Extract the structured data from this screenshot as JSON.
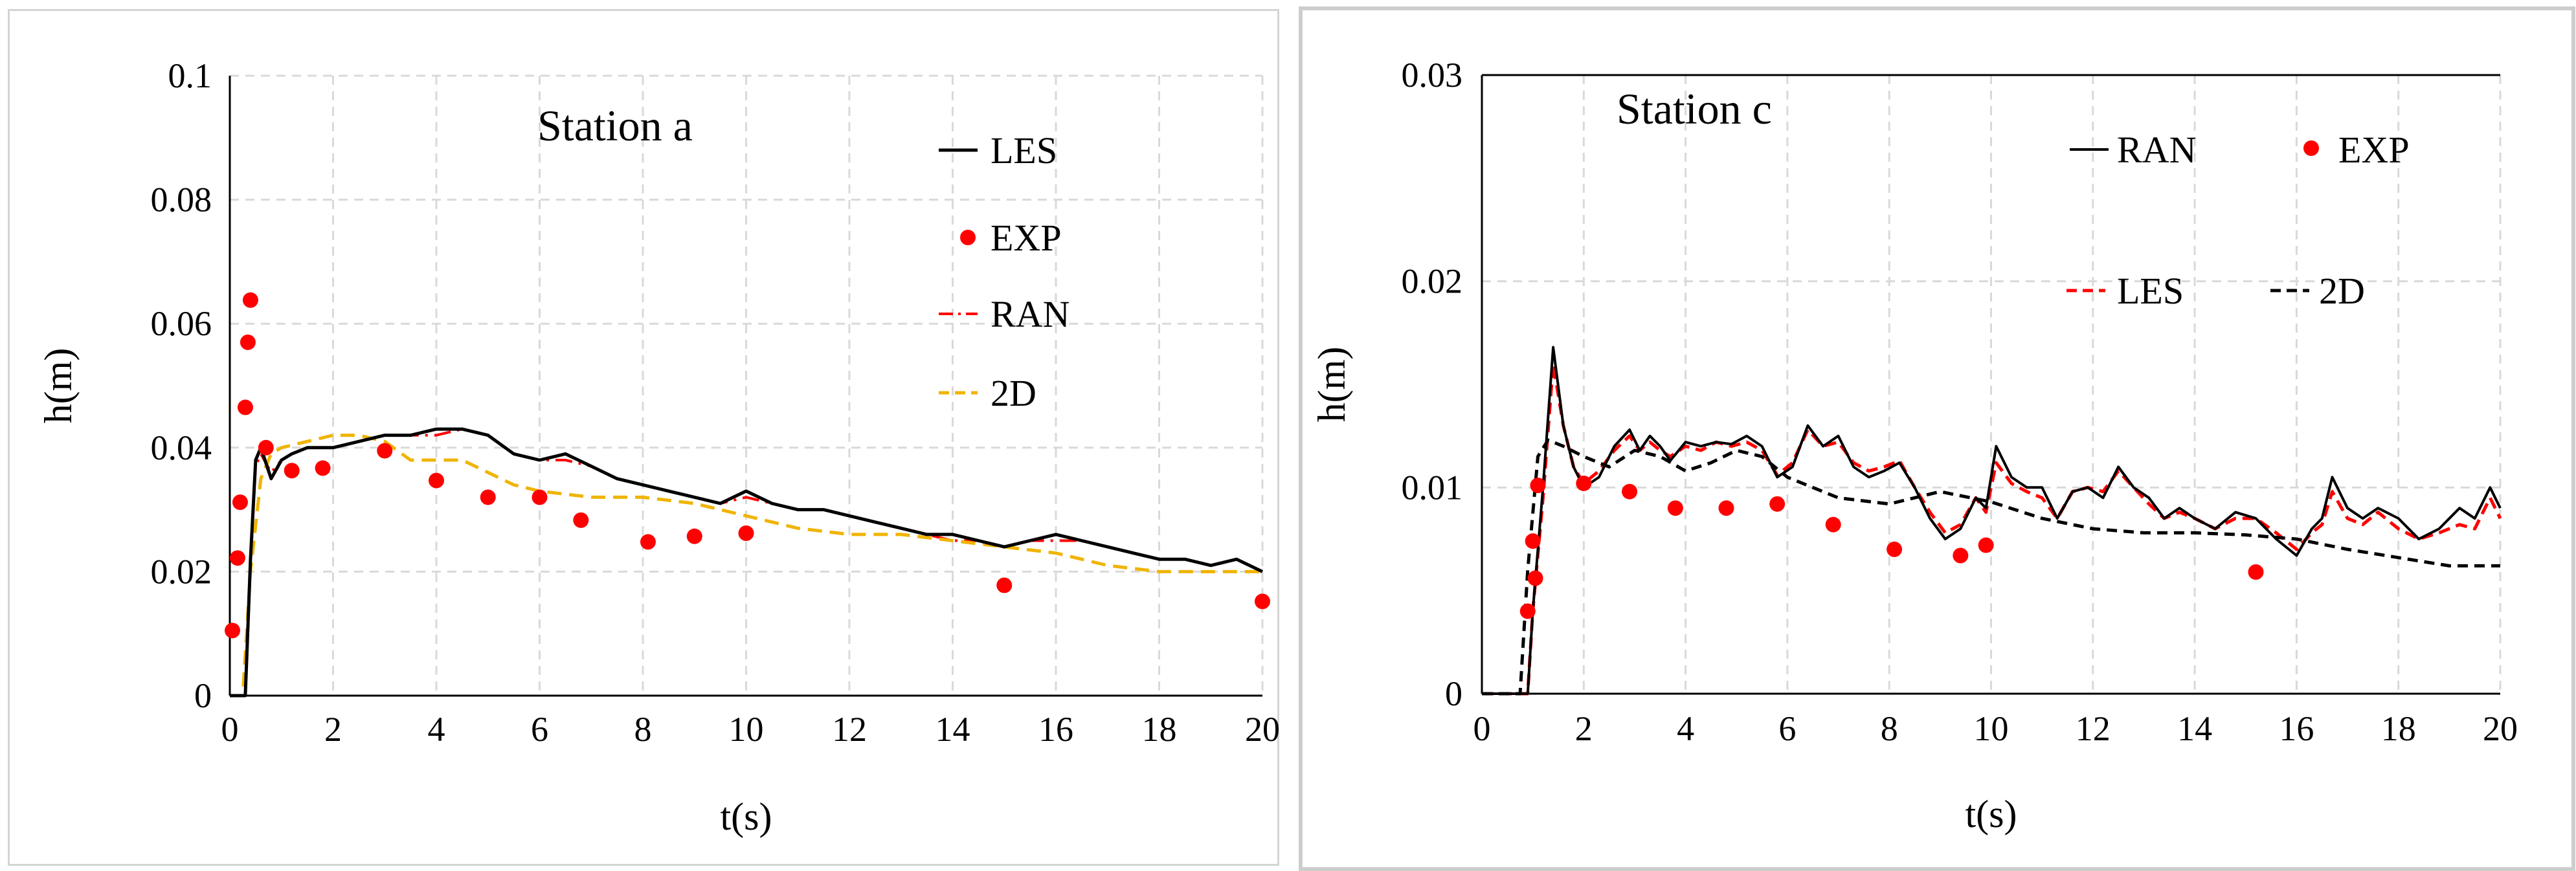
{
  "colors": {
    "les": "#000000",
    "exp": "#ff0000",
    "ran": "#ff0000",
    "twoD": "#f0b400",
    "twoDc": "#000000",
    "grid": "#d9d9d9"
  },
  "chart_data": [
    {
      "type": "line",
      "title": "Station a",
      "xlabel": "t(s)",
      "ylabel": "h(m)",
      "xlim": [
        0,
        20
      ],
      "ylim": [
        0,
        0.1
      ],
      "xticks": [
        "0",
        "2",
        "4",
        "6",
        "8",
        "10",
        "12",
        "14",
        "16",
        "18",
        "20"
      ],
      "yticks": [
        "0",
        "0.02",
        "0.04",
        "0.06",
        "0.08",
        "0.1"
      ],
      "legend": [
        "LES",
        "EXP",
        "RAN",
        "2D"
      ],
      "series": [
        {
          "name": "LES",
          "style": "solid",
          "x": [
            0,
            0.3,
            0.4,
            0.5,
            0.6,
            0.8,
            1.0,
            1.2,
            1.5,
            2.0,
            2.5,
            3.0,
            3.5,
            4.0,
            4.5,
            5.0,
            5.5,
            6.0,
            6.5,
            7.0,
            7.5,
            8.0,
            8.5,
            9.0,
            9.5,
            10.0,
            10.5,
            11.0,
            11.5,
            12.0,
            12.5,
            13.0,
            13.5,
            14.0,
            14.5,
            15.0,
            15.5,
            16.0,
            16.5,
            17.0,
            17.5,
            18.0,
            18.5,
            19.0,
            19.5,
            20.0
          ],
          "y": [
            0,
            0,
            0.022,
            0.038,
            0.04,
            0.035,
            0.038,
            0.039,
            0.04,
            0.04,
            0.041,
            0.042,
            0.042,
            0.043,
            0.043,
            0.042,
            0.039,
            0.038,
            0.039,
            0.037,
            0.035,
            0.034,
            0.033,
            0.032,
            0.031,
            0.033,
            0.031,
            0.03,
            0.03,
            0.029,
            0.028,
            0.027,
            0.026,
            0.026,
            0.025,
            0.024,
            0.025,
            0.026,
            0.025,
            0.024,
            0.023,
            0.022,
            0.022,
            0.021,
            0.022,
            0.02
          ]
        },
        {
          "name": "RAN",
          "style": "dashdot",
          "x": [
            0,
            0.3,
            0.4,
            0.5,
            0.6,
            0.8,
            1.0,
            1.2,
            1.5,
            2.0,
            2.5,
            3.0,
            3.5,
            4.0,
            4.5,
            5.0,
            5.5,
            6.0,
            6.5,
            7.0,
            7.5,
            8.0,
            8.5,
            9.0,
            9.5,
            10.0,
            10.5,
            11.0,
            11.5,
            12.0,
            12.5,
            13.0,
            13.5,
            14.0,
            14.5,
            15.0,
            15.5,
            16.0,
            16.5,
            17.0,
            17.5,
            18.0,
            18.5,
            19.0,
            19.5,
            20.0
          ],
          "y": [
            0,
            0,
            0.021,
            0.037,
            0.039,
            0.036,
            0.038,
            0.039,
            0.04,
            0.04,
            0.041,
            0.042,
            0.042,
            0.042,
            0.043,
            0.042,
            0.039,
            0.038,
            0.038,
            0.037,
            0.035,
            0.034,
            0.033,
            0.032,
            0.031,
            0.032,
            0.031,
            0.03,
            0.03,
            0.029,
            0.028,
            0.027,
            0.026,
            0.025,
            0.025,
            0.024,
            0.025,
            0.025,
            0.025,
            0.024,
            0.023,
            0.022,
            0.022,
            0.021,
            0.022,
            0.02
          ]
        },
        {
          "name": "2D",
          "style": "dash",
          "x": [
            0,
            0.25,
            0.4,
            0.6,
            0.8,
            1.0,
            1.5,
            2.0,
            2.5,
            3.0,
            3.5,
            4.0,
            4.5,
            5.0,
            5.5,
            6.0,
            7.0,
            8.0,
            9.0,
            10.0,
            11.0,
            12.0,
            13.0,
            14.0,
            15.0,
            16.0,
            17.0,
            18.0,
            19.0,
            20.0
          ],
          "y": [
            0,
            0,
            0.02,
            0.035,
            0.039,
            0.04,
            0.041,
            0.042,
            0.042,
            0.041,
            0.038,
            0.038,
            0.038,
            0.036,
            0.034,
            0.033,
            0.032,
            0.032,
            0.031,
            0.029,
            0.027,
            0.026,
            0.026,
            0.025,
            0.024,
            0.023,
            0.021,
            0.02,
            0.02,
            0.02
          ]
        },
        {
          "name": "EXP",
          "style": "marker",
          "x": [
            0.05,
            0.15,
            0.2,
            0.3,
            0.35,
            0.4,
            0.7,
            1.2,
            1.8,
            3.0,
            4.0,
            5.0,
            6.0,
            6.8,
            8.1,
            9.0,
            10.0,
            15.0,
            20.0
          ],
          "y": [
            0.0105,
            0.0222,
            0.0312,
            0.0465,
            0.057,
            0.0638,
            0.04,
            0.0363,
            0.0367,
            0.0395,
            0.0347,
            0.032,
            0.032,
            0.0283,
            0.0248,
            0.0257,
            0.0262,
            0.0178,
            0.0152
          ]
        }
      ]
    },
    {
      "type": "line",
      "title": "Station c",
      "xlabel": "t(s)",
      "ylabel": "h(m)",
      "xlim": [
        0,
        20
      ],
      "ylim": [
        0,
        0.03
      ],
      "xticks": [
        "0",
        "2",
        "4",
        "6",
        "8",
        "10",
        "12",
        "14",
        "16",
        "18",
        "20"
      ],
      "yticks": [
        "0",
        "0.01",
        "0.02",
        "0.03"
      ],
      "legend": [
        "RAN",
        "EXP",
        "LES",
        "2D"
      ],
      "series": [
        {
          "name": "RAN",
          "style": "solid",
          "x": [
            0,
            0.9,
            1.0,
            1.2,
            1.4,
            1.6,
            1.8,
            2.0,
            2.3,
            2.6,
            2.9,
            3.1,
            3.3,
            3.5,
            3.7,
            4.0,
            4.3,
            4.6,
            4.9,
            5.2,
            5.5,
            5.8,
            6.1,
            6.4,
            6.7,
            7.0,
            7.3,
            7.6,
            7.9,
            8.2,
            8.5,
            8.8,
            9.1,
            9.4,
            9.7,
            9.9,
            10.1,
            10.4,
            10.7,
            11.0,
            11.3,
            11.6,
            11.9,
            12.2,
            12.5,
            12.8,
            13.1,
            13.4,
            13.7,
            14.0,
            14.4,
            14.8,
            15.2,
            15.6,
            16.0,
            16.3,
            16.5,
            16.7,
            17.0,
            17.3,
            17.6,
            18.0,
            18.4,
            18.8,
            19.2,
            19.5,
            19.8,
            20.0
          ],
          "y": [
            0,
            0,
            0.004,
            0.01,
            0.0168,
            0.013,
            0.011,
            0.01,
            0.0105,
            0.012,
            0.0128,
            0.0118,
            0.0125,
            0.012,
            0.0113,
            0.0122,
            0.012,
            0.0122,
            0.0121,
            0.0125,
            0.012,
            0.0105,
            0.011,
            0.013,
            0.012,
            0.0125,
            0.011,
            0.0105,
            0.0108,
            0.0112,
            0.01,
            0.0085,
            0.0075,
            0.008,
            0.0095,
            0.009,
            0.012,
            0.0105,
            0.01,
            0.01,
            0.0085,
            0.0098,
            0.01,
            0.0095,
            0.011,
            0.01,
            0.0095,
            0.0085,
            0.009,
            0.0085,
            0.008,
            0.0088,
            0.0085,
            0.0075,
            0.0067,
            0.008,
            0.0085,
            0.0105,
            0.009,
            0.0085,
            0.009,
            0.0085,
            0.0075,
            0.008,
            0.009,
            0.0085,
            0.01,
            0.009
          ]
        },
        {
          "name": "LES",
          "style": "dash",
          "x": [
            0,
            0.9,
            1.0,
            1.2,
            1.4,
            1.6,
            1.8,
            2.0,
            2.3,
            2.6,
            2.9,
            3.1,
            3.3,
            3.5,
            3.7,
            4.0,
            4.3,
            4.6,
            4.9,
            5.2,
            5.5,
            5.8,
            6.1,
            6.4,
            6.7,
            7.0,
            7.3,
            7.6,
            7.9,
            8.2,
            8.5,
            8.8,
            9.1,
            9.4,
            9.7,
            9.9,
            10.1,
            10.4,
            10.7,
            11.0,
            11.3,
            11.6,
            11.9,
            12.2,
            12.5,
            12.8,
            13.1,
            13.4,
            13.7,
            14.0,
            14.4,
            14.8,
            15.2,
            15.6,
            16.0,
            16.3,
            16.5,
            16.7,
            17.0,
            17.3,
            17.6,
            18.0,
            18.4,
            18.8,
            19.2,
            19.5,
            19.8,
            20.0
          ],
          "y": [
            0,
            0,
            0.004,
            0.0095,
            0.016,
            0.013,
            0.011,
            0.0102,
            0.0108,
            0.0118,
            0.0125,
            0.0118,
            0.0122,
            0.0118,
            0.0115,
            0.012,
            0.0118,
            0.0122,
            0.012,
            0.0122,
            0.0118,
            0.0106,
            0.0112,
            0.0128,
            0.012,
            0.0122,
            0.0112,
            0.0108,
            0.011,
            0.0113,
            0.01,
            0.0088,
            0.0078,
            0.0082,
            0.0095,
            0.0088,
            0.0112,
            0.0102,
            0.0098,
            0.0095,
            0.0085,
            0.0098,
            0.01,
            0.0098,
            0.0108,
            0.01,
            0.0092,
            0.0085,
            0.0088,
            0.0085,
            0.008,
            0.0085,
            0.0085,
            0.0078,
            0.007,
            0.0078,
            0.0082,
            0.0098,
            0.0085,
            0.0082,
            0.0088,
            0.008,
            0.0075,
            0.0078,
            0.0082,
            0.008,
            0.0095,
            0.0085
          ]
        },
        {
          "name": "2D",
          "style": "dash",
          "x": [
            0,
            0.75,
            0.9,
            1.1,
            1.3,
            1.6,
            2.0,
            2.5,
            3.0,
            3.5,
            4.0,
            4.5,
            5.0,
            5.5,
            6.0,
            7.0,
            8.0,
            9.0,
            10.0,
            11.0,
            12.0,
            13.0,
            14.0,
            15.0,
            16.0,
            17.0,
            18.0,
            19.0,
            20.0
          ],
          "y": [
            0,
            0,
            0.006,
            0.0115,
            0.0123,
            0.012,
            0.0115,
            0.011,
            0.0118,
            0.0115,
            0.0108,
            0.0112,
            0.0118,
            0.0115,
            0.0105,
            0.0095,
            0.0092,
            0.0098,
            0.0093,
            0.0085,
            0.008,
            0.0078,
            0.0078,
            0.0077,
            0.0075,
            0.007,
            0.0066,
            0.0062,
            0.0062
          ]
        },
        {
          "name": "EXP",
          "style": "marker",
          "x": [
            0.9,
            1.0,
            1.05,
            1.1,
            2.0,
            2.9,
            3.8,
            4.8,
            5.8,
            6.9,
            8.1,
            9.4,
            9.9,
            15.2
          ],
          "y": [
            0.004,
            0.0074,
            0.0056,
            0.0101,
            0.0102,
            0.0098,
            0.009,
            0.009,
            0.0092,
            0.0082,
            0.007,
            0.0067,
            0.0072,
            0.0059
          ]
        }
      ]
    }
  ]
}
